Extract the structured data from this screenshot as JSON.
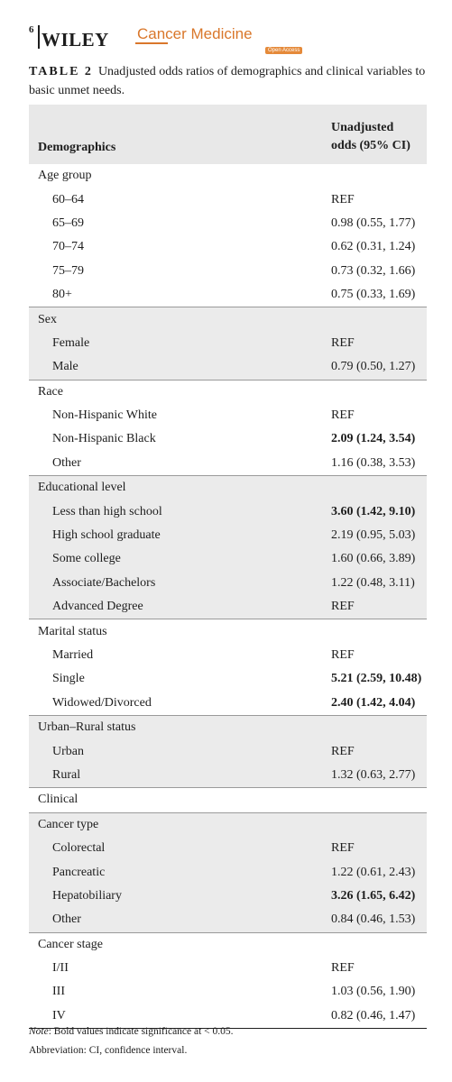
{
  "header": {
    "page_number": "6",
    "publisher": "WILEY",
    "journal": "Cancer Medicine",
    "open_access": "Open Access"
  },
  "caption": {
    "label": "TABLE 2",
    "text": "Unadjusted odds ratios of demographics and clinical variables to basic unmet needs."
  },
  "table": {
    "col1_header": "Demographics",
    "col2_header_line1": "Unadjusted",
    "col2_header_line2": "odds (95% CI)",
    "rows": [
      {
        "label": "Age group",
        "value": "",
        "level": "group",
        "shade": false,
        "sep": false,
        "bold": false
      },
      {
        "label": "60–64",
        "value": "REF",
        "level": "sub",
        "shade": false,
        "sep": false,
        "bold": false
      },
      {
        "label": "65–69",
        "value": "0.98 (0.55, 1.77)",
        "level": "sub",
        "shade": false,
        "sep": false,
        "bold": false
      },
      {
        "label": "70–74",
        "value": "0.62 (0.31, 1.24)",
        "level": "sub",
        "shade": false,
        "sep": false,
        "bold": false
      },
      {
        "label": "75–79",
        "value": "0.73 (0.32, 1.66)",
        "level": "sub",
        "shade": false,
        "sep": false,
        "bold": false
      },
      {
        "label": "80+",
        "value": "0.75 (0.33, 1.69)",
        "level": "sub",
        "shade": false,
        "sep": false,
        "bold": false
      },
      {
        "label": "Sex",
        "value": "",
        "level": "group",
        "shade": true,
        "sep": true,
        "bold": false
      },
      {
        "label": "Female",
        "value": "REF",
        "level": "sub",
        "shade": true,
        "sep": false,
        "bold": false
      },
      {
        "label": "Male",
        "value": "0.79 (0.50, 1.27)",
        "level": "sub",
        "shade": true,
        "sep": false,
        "bold": false
      },
      {
        "label": "Race",
        "value": "",
        "level": "group",
        "shade": false,
        "sep": true,
        "bold": false
      },
      {
        "label": "Non-Hispanic White",
        "value": "REF",
        "level": "sub",
        "shade": false,
        "sep": false,
        "bold": false
      },
      {
        "label": "Non-Hispanic Black",
        "value": "2.09 (1.24, 3.54)",
        "level": "sub",
        "shade": false,
        "sep": false,
        "bold": true
      },
      {
        "label": "Other",
        "value": "1.16 (0.38, 3.53)",
        "level": "sub",
        "shade": false,
        "sep": false,
        "bold": false
      },
      {
        "label": "Educational level",
        "value": "",
        "level": "group",
        "shade": true,
        "sep": true,
        "bold": false
      },
      {
        "label": "Less than high school",
        "value": "3.60 (1.42, 9.10)",
        "level": "sub",
        "shade": true,
        "sep": false,
        "bold": true
      },
      {
        "label": "High school graduate",
        "value": "2.19 (0.95, 5.03)",
        "level": "sub",
        "shade": true,
        "sep": false,
        "bold": false
      },
      {
        "label": "Some college",
        "value": "1.60 (0.66, 3.89)",
        "level": "sub",
        "shade": true,
        "sep": false,
        "bold": false
      },
      {
        "label": "Associate/Bachelors",
        "value": "1.22 (0.48, 3.11)",
        "level": "sub",
        "shade": true,
        "sep": false,
        "bold": false
      },
      {
        "label": "Advanced Degree",
        "value": "REF",
        "level": "sub",
        "shade": true,
        "sep": false,
        "bold": false
      },
      {
        "label": "Marital status",
        "value": "",
        "level": "group",
        "shade": false,
        "sep": true,
        "bold": false
      },
      {
        "label": "Married",
        "value": "REF",
        "level": "sub",
        "shade": false,
        "sep": false,
        "bold": false
      },
      {
        "label": "Single",
        "value": "5.21 (2.59, 10.48)",
        "level": "sub",
        "shade": false,
        "sep": false,
        "bold": true
      },
      {
        "label": "Widowed/Divorced",
        "value": "2.40 (1.42, 4.04)",
        "level": "sub",
        "shade": false,
        "sep": false,
        "bold": true
      },
      {
        "label": "Urban–Rural status",
        "value": "",
        "level": "group",
        "shade": true,
        "sep": true,
        "bold": false
      },
      {
        "label": "Urban",
        "value": "REF",
        "level": "sub",
        "shade": true,
        "sep": false,
        "bold": false
      },
      {
        "label": "Rural",
        "value": "1.32 (0.63, 2.77)",
        "level": "sub",
        "shade": true,
        "sep": false,
        "bold": false
      },
      {
        "label": "Clinical",
        "value": "",
        "level": "group",
        "shade": false,
        "sep": true,
        "bold": false
      },
      {
        "label": "Cancer type",
        "value": "",
        "level": "group",
        "shade": true,
        "sep": true,
        "bold": false
      },
      {
        "label": "Colorectal",
        "value": "REF",
        "level": "sub",
        "shade": true,
        "sep": false,
        "bold": false
      },
      {
        "label": "Pancreatic",
        "value": "1.22 (0.61, 2.43)",
        "level": "sub",
        "shade": true,
        "sep": false,
        "bold": false
      },
      {
        "label": "Hepatobiliary",
        "value": "3.26 (1.65, 6.42)",
        "level": "sub",
        "shade": true,
        "sep": false,
        "bold": true
      },
      {
        "label": "Other",
        "value": "0.84 (0.46, 1.53)",
        "level": "sub",
        "shade": true,
        "sep": false,
        "bold": false
      },
      {
        "label": "Cancer stage",
        "value": "",
        "level": "group",
        "shade": false,
        "sep": true,
        "bold": false
      },
      {
        "label": "I/II",
        "value": "REF",
        "level": "sub",
        "shade": false,
        "sep": false,
        "bold": false
      },
      {
        "label": "III",
        "value": "1.03 (0.56, 1.90)",
        "level": "sub",
        "shade": false,
        "sep": false,
        "bold": false
      },
      {
        "label": "IV",
        "value": "0.82 (0.46, 1.47)",
        "level": "sub",
        "shade": false,
        "sep": false,
        "bold": false
      }
    ]
  },
  "footer": {
    "note_label": "Note",
    "note_text": ": Bold values indicate significance at < 0.05.",
    "abbreviation": "Abbreviation: CI, confidence interval."
  }
}
